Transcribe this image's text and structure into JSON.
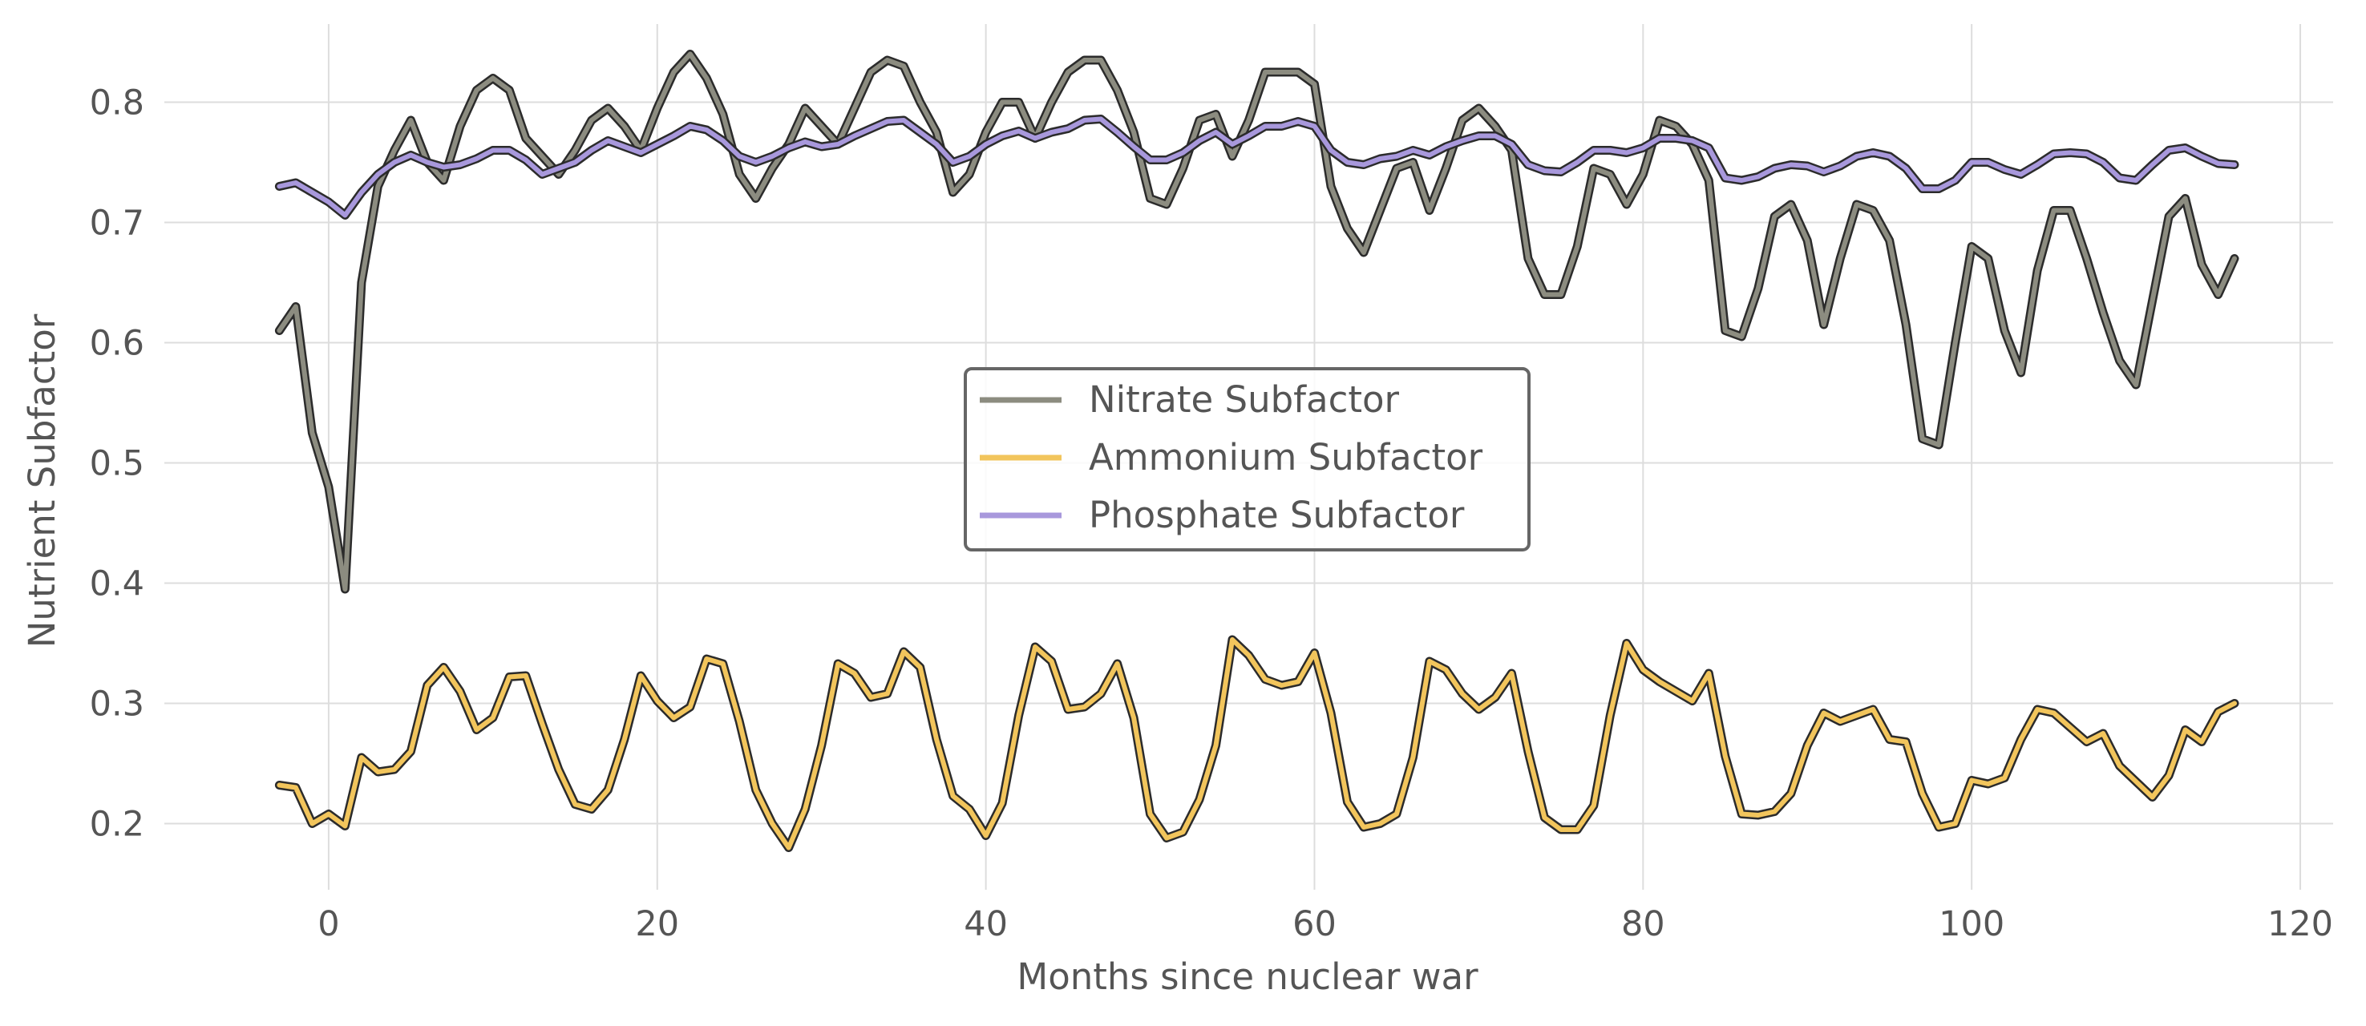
{
  "chart_data": {
    "type": "line",
    "xlabel": "Months since nuclear war",
    "ylabel": "Nutrient Subfactor",
    "xlim": [
      -10,
      122
    ],
    "ylim": [
      0.145,
      0.865
    ],
    "xticks": [
      0,
      20,
      40,
      60,
      80,
      100,
      120
    ],
    "yticks": [
      0.2,
      0.3,
      0.4,
      0.5,
      0.6,
      0.7,
      0.8
    ],
    "grid": true,
    "legend_position": "center",
    "series": [
      {
        "name": "Nitrate Subfactor",
        "color": "#8c8c80",
        "x": [
          -3,
          -2,
          -1,
          0,
          1,
          2,
          3,
          4,
          5,
          6,
          7,
          8,
          9,
          10,
          11,
          12,
          13,
          14,
          15,
          16,
          17,
          18,
          19,
          20,
          21,
          22,
          23,
          24,
          25,
          26,
          27,
          28,
          29,
          30,
          31,
          32,
          33,
          34,
          35,
          36,
          37,
          38,
          39,
          40,
          41,
          42,
          43,
          44,
          45,
          46,
          47,
          48,
          49,
          50,
          51,
          52,
          53,
          54,
          55,
          56,
          57,
          58,
          59,
          60,
          61,
          62,
          63,
          64,
          65,
          66,
          67,
          68,
          69,
          70,
          71,
          72,
          73,
          74,
          75,
          76,
          77,
          78,
          79,
          80,
          81,
          82,
          83,
          84,
          85,
          86,
          87,
          88,
          89,
          90,
          91,
          92,
          93,
          94,
          95,
          96,
          97,
          98,
          99,
          100,
          101,
          102,
          103,
          104,
          105,
          106,
          107,
          108,
          109,
          110,
          111,
          112,
          113,
          114,
          115,
          116
        ],
        "y": [
          0.61,
          0.63,
          0.525,
          0.48,
          0.395,
          0.65,
          0.73,
          0.76,
          0.785,
          0.75,
          0.735,
          0.78,
          0.81,
          0.82,
          0.81,
          0.77,
          0.755,
          0.74,
          0.76,
          0.785,
          0.795,
          0.78,
          0.76,
          0.795,
          0.825,
          0.84,
          0.82,
          0.79,
          0.74,
          0.72,
          0.745,
          0.765,
          0.795,
          0.78,
          0.765,
          0.795,
          0.825,
          0.835,
          0.83,
          0.8,
          0.775,
          0.725,
          0.74,
          0.775,
          0.8,
          0.8,
          0.77,
          0.8,
          0.825,
          0.835,
          0.835,
          0.81,
          0.775,
          0.72,
          0.715,
          0.745,
          0.785,
          0.79,
          0.755,
          0.785,
          0.825,
          0.825,
          0.825,
          0.815,
          0.73,
          0.695,
          0.675,
          0.71,
          0.745,
          0.75,
          0.71,
          0.745,
          0.785,
          0.795,
          0.78,
          0.76,
          0.67,
          0.64,
          0.64,
          0.68,
          0.745,
          0.74,
          0.715,
          0.74,
          0.785,
          0.78,
          0.765,
          0.735,
          0.61,
          0.605,
          0.645,
          0.705,
          0.715,
          0.685,
          0.615,
          0.67,
          0.715,
          0.71,
          0.685,
          0.615,
          0.52,
          0.515,
          0.6,
          0.68,
          0.67,
          0.61,
          0.575,
          0.66,
          0.71,
          0.71,
          0.67,
          0.625,
          0.585,
          0.565,
          0.635,
          0.705,
          0.72,
          0.665,
          0.64,
          0.67
        ]
      },
      {
        "name": "Ammonium Subfactor",
        "color": "#f2c55c",
        "x": [
          -3,
          -2,
          -1,
          0,
          1,
          2,
          3,
          4,
          5,
          6,
          7,
          8,
          9,
          10,
          11,
          12,
          13,
          14,
          15,
          16,
          17,
          18,
          19,
          20,
          21,
          22,
          23,
          24,
          25,
          26,
          27,
          28,
          29,
          30,
          31,
          32,
          33,
          34,
          35,
          36,
          37,
          38,
          39,
          40,
          41,
          42,
          43,
          44,
          45,
          46,
          47,
          48,
          49,
          50,
          51,
          52,
          53,
          54,
          55,
          56,
          57,
          58,
          59,
          60,
          61,
          62,
          63,
          64,
          65,
          66,
          67,
          68,
          69,
          70,
          71,
          72,
          73,
          74,
          75,
          76,
          77,
          78,
          79,
          80,
          81,
          82,
          83,
          84,
          85,
          86,
          87,
          88,
          89,
          90,
          91,
          92,
          93,
          94,
          95,
          96,
          97,
          98,
          99,
          100,
          101,
          102,
          103,
          104,
          105,
          106,
          107,
          108,
          109,
          110,
          111,
          112,
          113,
          114,
          115,
          116
        ],
        "y": [
          0.232,
          0.23,
          0.2,
          0.208,
          0.198,
          0.255,
          0.243,
          0.245,
          0.26,
          0.315,
          0.33,
          0.31,
          0.278,
          0.288,
          0.322,
          0.323,
          0.283,
          0.245,
          0.216,
          0.212,
          0.228,
          0.27,
          0.323,
          0.302,
          0.288,
          0.297,
          0.337,
          0.333,
          0.285,
          0.228,
          0.2,
          0.18,
          0.212,
          0.265,
          0.333,
          0.325,
          0.305,
          0.308,
          0.343,
          0.33,
          0.27,
          0.223,
          0.212,
          0.19,
          0.217,
          0.29,
          0.347,
          0.335,
          0.295,
          0.297,
          0.308,
          0.333,
          0.288,
          0.208,
          0.188,
          0.193,
          0.22,
          0.265,
          0.353,
          0.34,
          0.32,
          0.315,
          0.318,
          0.342,
          0.292,
          0.218,
          0.197,
          0.2,
          0.208,
          0.255,
          0.335,
          0.328,
          0.308,
          0.295,
          0.305,
          0.325,
          0.26,
          0.205,
          0.195,
          0.195,
          0.215,
          0.29,
          0.35,
          0.328,
          0.318,
          0.31,
          0.302,
          0.325,
          0.256,
          0.208,
          0.207,
          0.21,
          0.225,
          0.265,
          0.292,
          0.285,
          0.29,
          0.295,
          0.27,
          0.268,
          0.225,
          0.197,
          0.2,
          0.236,
          0.233,
          0.238,
          0.27,
          0.295,
          0.292,
          0.28,
          0.268,
          0.275,
          0.248,
          0.235,
          0.222,
          0.24,
          0.278,
          0.268,
          0.293,
          0.3
        ]
      },
      {
        "name": "Phosphate Subfactor",
        "color": "#a898dc",
        "x": [
          -3,
          -2,
          -1,
          0,
          1,
          2,
          3,
          4,
          5,
          6,
          7,
          8,
          9,
          10,
          11,
          12,
          13,
          14,
          15,
          16,
          17,
          18,
          19,
          20,
          21,
          22,
          23,
          24,
          25,
          26,
          27,
          28,
          29,
          30,
          31,
          32,
          33,
          34,
          35,
          36,
          37,
          38,
          39,
          40,
          41,
          42,
          43,
          44,
          45,
          46,
          47,
          48,
          49,
          50,
          51,
          52,
          53,
          54,
          55,
          56,
          57,
          58,
          59,
          60,
          61,
          62,
          63,
          64,
          65,
          66,
          67,
          68,
          69,
          70,
          71,
          72,
          73,
          74,
          75,
          76,
          77,
          78,
          79,
          80,
          81,
          82,
          83,
          84,
          85,
          86,
          87,
          88,
          89,
          90,
          91,
          92,
          93,
          94,
          95,
          96,
          97,
          98,
          99,
          100,
          101,
          102,
          103,
          104,
          105,
          106,
          107,
          108,
          109,
          110,
          111,
          112,
          113,
          114,
          115,
          116
        ],
        "y": [
          0.73,
          0.733,
          0.725,
          0.717,
          0.706,
          0.725,
          0.74,
          0.75,
          0.756,
          0.75,
          0.746,
          0.748,
          0.753,
          0.76,
          0.76,
          0.752,
          0.74,
          0.745,
          0.75,
          0.76,
          0.768,
          0.763,
          0.758,
          0.765,
          0.772,
          0.78,
          0.777,
          0.768,
          0.755,
          0.75,
          0.755,
          0.762,
          0.767,
          0.763,
          0.765,
          0.772,
          0.778,
          0.784,
          0.785,
          0.775,
          0.765,
          0.75,
          0.755,
          0.765,
          0.772,
          0.776,
          0.77,
          0.775,
          0.778,
          0.785,
          0.786,
          0.775,
          0.763,
          0.752,
          0.752,
          0.758,
          0.768,
          0.775,
          0.765,
          0.772,
          0.78,
          0.78,
          0.784,
          0.78,
          0.76,
          0.75,
          0.748,
          0.753,
          0.755,
          0.76,
          0.756,
          0.763,
          0.768,
          0.772,
          0.772,
          0.765,
          0.748,
          0.743,
          0.742,
          0.75,
          0.76,
          0.76,
          0.758,
          0.762,
          0.77,
          0.77,
          0.768,
          0.762,
          0.737,
          0.735,
          0.738,
          0.745,
          0.748,
          0.747,
          0.742,
          0.747,
          0.755,
          0.758,
          0.755,
          0.745,
          0.728,
          0.728,
          0.735,
          0.75,
          0.75,
          0.744,
          0.74,
          0.748,
          0.757,
          0.758,
          0.757,
          0.75,
          0.737,
          0.735,
          0.748,
          0.76,
          0.762,
          0.755,
          0.749,
          0.748
        ]
      }
    ]
  }
}
